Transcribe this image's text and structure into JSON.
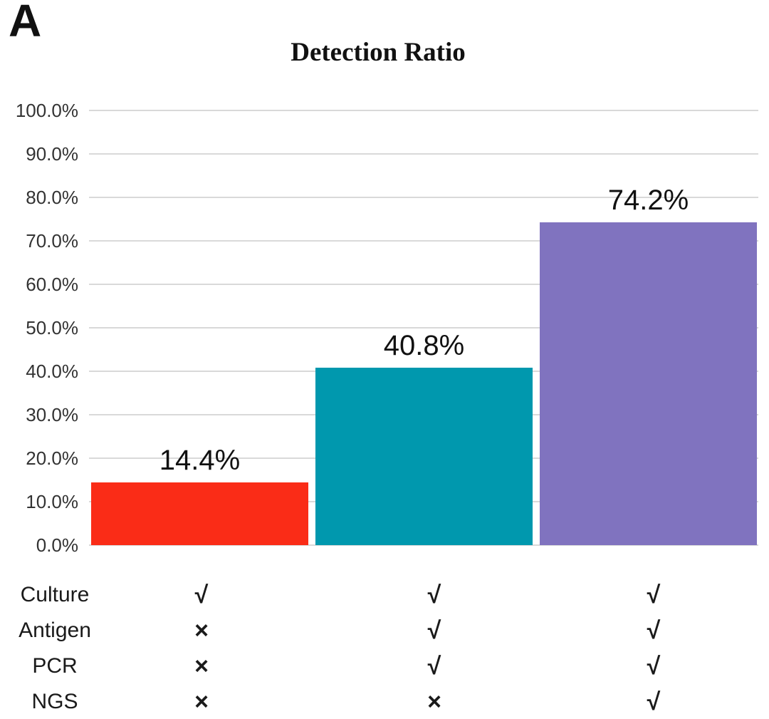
{
  "panel_label": "A",
  "chart_data": {
    "type": "bar",
    "title": "Detection Ratio",
    "ylim": [
      0,
      100
    ],
    "grid": true,
    "legend": "none",
    "ytick_labels": [
      "100.0%",
      "90.0%",
      "80.0%",
      "70.0%",
      "60.0%",
      "50.0%",
      "40.0%",
      "30.0%",
      "20.0%",
      "10.0%",
      "0.0%"
    ],
    "columns": [
      {
        "value": 14.4,
        "label": "14.4%",
        "color": "#fa2c17"
      },
      {
        "value": 40.8,
        "label": "40.8%",
        "color": "#0098ae"
      },
      {
        "value": 74.2,
        "label": "74.2%",
        "color": "#8073bf"
      }
    ],
    "method_matrix": {
      "row_labels": [
        "Culture",
        "Antigen",
        "PCR",
        "NGS"
      ],
      "marks": [
        [
          "√",
          "√",
          "√"
        ],
        [
          "×",
          "√",
          "√"
        ],
        [
          "×",
          "√",
          "√"
        ],
        [
          "×",
          "×",
          "√"
        ]
      ],
      "check_symbol": "√",
      "cross_symbol": "×"
    }
  },
  "colors": {
    "background": "#ffffff",
    "gridline": "#d9d9d9",
    "text": "#1a1a1a"
  }
}
